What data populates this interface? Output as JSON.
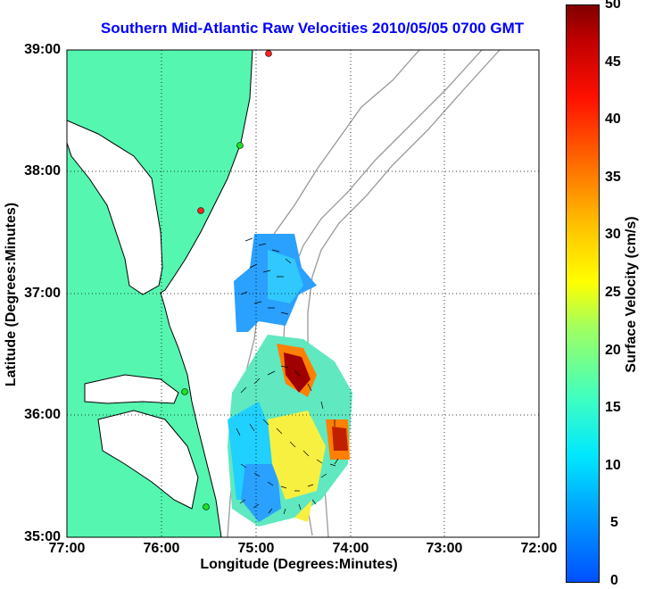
{
  "title": "Southern Mid-Atlantic Raw Velocities 2010/05/05 0700 GMT",
  "xlabel": "Longitude (Degrees:Minutes)",
  "ylabel": "Latitude (Degrees:Minutes)",
  "colorbar_label": "Surface Velocity (cm/s)",
  "x_ticks": [
    "77:00",
    "76:00",
    "75:00",
    "74:00",
    "73:00",
    "72:00"
  ],
  "y_ticks": [
    "39:00",
    "38:00",
    "37:00",
    "36:00",
    "35:00"
  ],
  "colorbar_ticks": [
    "50",
    "45",
    "40",
    "35",
    "30",
    "25",
    "20",
    "15",
    "10",
    "5",
    "0"
  ],
  "colors": {
    "land": "#55f7b0",
    "coast": "#000000",
    "bathymetry": "#999999",
    "title": "#0000ff"
  },
  "chart_data": {
    "type": "heatmap",
    "title": "Southern Mid-Atlantic Raw Velocities 2010/05/05 0700 GMT",
    "xlabel": "Longitude (Degrees:Minutes)",
    "ylabel": "Latitude (Degrees:Minutes)",
    "xlim": [
      "77:00",
      "72:00"
    ],
    "ylim": [
      "35:00",
      "39:00"
    ],
    "colorbar": {
      "label": "Surface Velocity (cm/s)",
      "range": [
        0,
        50
      ]
    },
    "grid": true,
    "stations": [
      {
        "lon": -74.85,
        "lat": 38.95,
        "status": "red"
      },
      {
        "lon": -76.15,
        "lat": 37.7,
        "status": "red"
      },
      {
        "lon": -75.1,
        "lat": 38.2,
        "status": "green"
      },
      {
        "lon": -75.7,
        "lat": 36.2,
        "status": "green"
      },
      {
        "lon": -75.45,
        "lat": 35.25,
        "status": "green"
      }
    ]
  }
}
